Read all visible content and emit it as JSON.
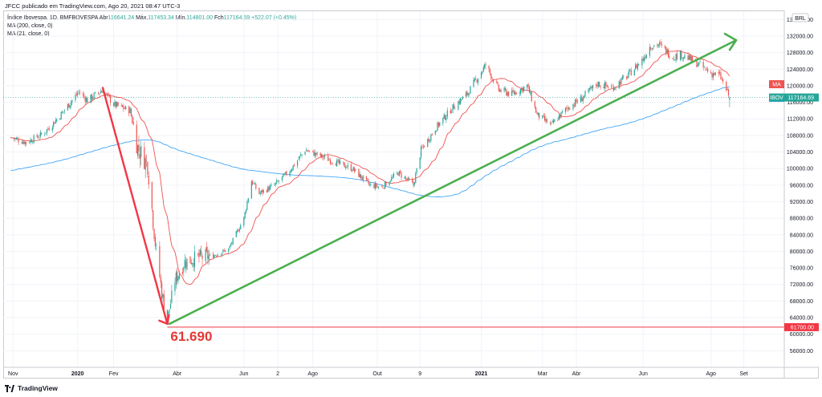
{
  "header": {
    "publisher": "JFCC publicado em TradingView.com, Ago 20, 2021 08:47 UTC-3"
  },
  "legend": {
    "symbol": "Índice Ibovespa, 1D, BMFBOVESPA",
    "open_label": "Abr",
    "open": "116641.24",
    "high_label": "Máx.",
    "high": "117453.34",
    "low_label": "Mín.",
    "low": "114801.00",
    "close_label": "Fch",
    "close": "117164.69",
    "change": "+522.07 (+0.45%)",
    "ma_long": "MA (200, close, 0)",
    "ma_short": "MA (21, close, 0)"
  },
  "footer": {
    "brand": "TradingView"
  },
  "colors": {
    "up": "#26a69a",
    "down": "#ef5350",
    "ma_short": "#ef5350",
    "ma_long": "#42a5f5",
    "trend": "#4caf50",
    "drop": "#f23645",
    "grid": "#f0f3fa"
  },
  "chart_data": {
    "type": "candlestick",
    "currency_label": "BRL",
    "ylim": [
      52000,
      138000
    ],
    "y_ticks": [
      "56000.00",
      "60000.00",
      "64000.00",
      "68000.00",
      "72000.00",
      "76000.00",
      "80000.00",
      "84000.00",
      "88000.00",
      "92000.00",
      "96000.00",
      "100000.00",
      "104000.00",
      "108000.00",
      "112000.00",
      "116000.00",
      "120000.00",
      "124000.00",
      "128000.00",
      "132000.00",
      "136000.00"
    ],
    "x_ticks": [
      "Nov",
      "2020",
      "Fev",
      "Abr",
      "Jun",
      "2",
      "Ago",
      "Out",
      "9",
      "2021",
      "Mar",
      "Abr",
      "Jun",
      "Ago",
      "Set"
    ],
    "series": [
      {
        "name": "IBOV",
        "type": "close"
      },
      {
        "name": "MA",
        "type": "moving-average",
        "period": 200
      },
      {
        "name": "MA",
        "type": "moving-average",
        "period": 21
      }
    ],
    "close_path": [
      [
        "2019-11-01",
        107500
      ],
      [
        "2019-11-15",
        106300
      ],
      [
        "2019-12-01",
        108500
      ],
      [
        "2019-12-15",
        112500
      ],
      [
        "2020-01-02",
        118500
      ],
      [
        "2020-01-10",
        116500
      ],
      [
        "2020-01-24",
        119000
      ],
      [
        "2020-02-03",
        115500
      ],
      [
        "2020-02-18",
        114000
      ],
      [
        "2020-02-25",
        105000
      ],
      [
        "2020-03-05",
        101000
      ],
      [
        "2020-03-12",
        82000
      ],
      [
        "2020-03-18",
        70000
      ],
      [
        "2020-03-23",
        63500
      ],
      [
        "2020-03-30",
        73000
      ],
      [
        "2020-04-08",
        77500
      ],
      [
        "2020-04-20",
        78500
      ],
      [
        "2020-05-04",
        79000
      ],
      [
        "2020-05-18",
        80500
      ],
      [
        "2020-06-01",
        88000
      ],
      [
        "2020-06-08",
        97000
      ],
      [
        "2020-06-15",
        94000
      ],
      [
        "2020-06-29",
        96000
      ],
      [
        "2020-07-13",
        99500
      ],
      [
        "2020-07-27",
        104500
      ],
      [
        "2020-08-10",
        103000
      ],
      [
        "2020-08-24",
        101500
      ],
      [
        "2020-09-08",
        100000
      ],
      [
        "2020-09-24",
        96000
      ],
      [
        "2020-10-05",
        95500
      ],
      [
        "2020-10-20",
        99000
      ],
      [
        "2020-11-03",
        96000
      ],
      [
        "2020-11-10",
        104500
      ],
      [
        "2020-11-24",
        110000
      ],
      [
        "2020-12-08",
        114500
      ],
      [
        "2020-12-22",
        118000
      ],
      [
        "2021-01-08",
        125000
      ],
      [
        "2021-01-20",
        119000
      ],
      [
        "2021-02-01",
        118000
      ],
      [
        "2021-02-15",
        120000
      ],
      [
        "2021-02-24",
        113000
      ],
      [
        "2021-03-09",
        110500
      ],
      [
        "2021-03-23",
        114500
      ],
      [
        "2021-04-06",
        117000
      ],
      [
        "2021-04-20",
        120500
      ],
      [
        "2021-05-04",
        119500
      ],
      [
        "2021-05-18",
        122500
      ],
      [
        "2021-06-01",
        126500
      ],
      [
        "2021-06-07",
        129500
      ],
      [
        "2021-06-15",
        130000
      ],
      [
        "2021-06-28",
        127000
      ],
      [
        "2021-07-06",
        127500
      ],
      [
        "2021-07-20",
        125500
      ],
      [
        "2021-08-02",
        123000
      ],
      [
        "2021-08-10",
        122500
      ],
      [
        "2021-08-16",
        119000
      ],
      [
        "2021-08-19",
        117164.69
      ]
    ],
    "annotations": {
      "low_value_text": "61.690",
      "level_line_label": "61700.00",
      "last_price_label": "117164.69",
      "last_price_tag": "IBOV",
      "ma_tag_short": "MA",
      "ma_tag_long": "MA",
      "drop_arrow": {
        "from": [
          "2020-01-24",
          119500
        ],
        "to": [
          "2020-03-23",
          62500
        ]
      },
      "trend_arrow": {
        "from": [
          "2020-03-25",
          62500
        ],
        "to": [
          "2021-08-25",
          131000
        ]
      },
      "level_line": 61700
    }
  }
}
